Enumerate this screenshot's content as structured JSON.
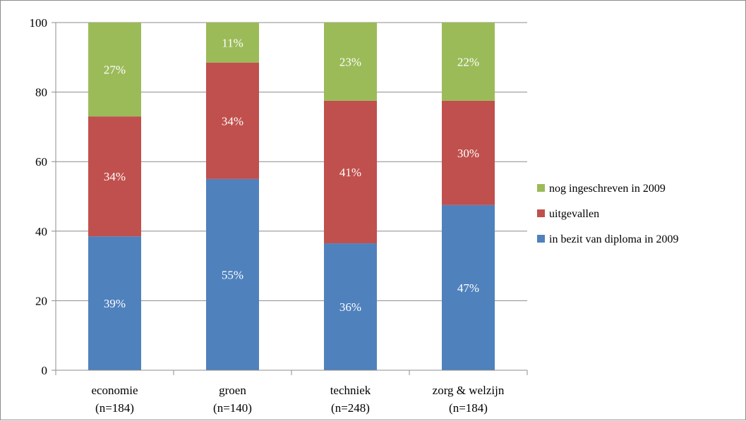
{
  "chart_data": {
    "type": "bar",
    "stacked": true,
    "categories": [
      [
        "economie",
        "(n=184)"
      ],
      [
        "groen",
        "(n=140)"
      ],
      [
        "techniek",
        "(n=248)"
      ],
      [
        "zorg & welzijn",
        "(n=184)"
      ]
    ],
    "series": [
      {
        "name": "in bezit van diploma in 2009",
        "color": "#4f81bd",
        "values": [
          38.5,
          55,
          36.5,
          47.5
        ],
        "labels": [
          "39%",
          "55%",
          "36%",
          "47%"
        ]
      },
      {
        "name": "uitgevallen",
        "color": "#c0504d",
        "values": [
          34.5,
          33.5,
          41,
          30
        ],
        "labels": [
          "34%",
          "34%",
          "41%",
          "30%"
        ]
      },
      {
        "name": "nog ingeschreven in 2009",
        "color": "#9bbb59",
        "values": [
          27,
          11.5,
          22.5,
          22.5
        ],
        "labels": [
          "27%",
          "11%",
          "23%",
          "22%"
        ]
      }
    ],
    "ylim": [
      0,
      100
    ],
    "yticks": [
      "0",
      "20",
      "40",
      "60",
      "80",
      "100"
    ],
    "grid": true,
    "legend": "right",
    "legend_order": [
      "nog ingeschreven in 2009",
      "uitgevallen",
      "in bezit van diploma in 2009"
    ]
  }
}
